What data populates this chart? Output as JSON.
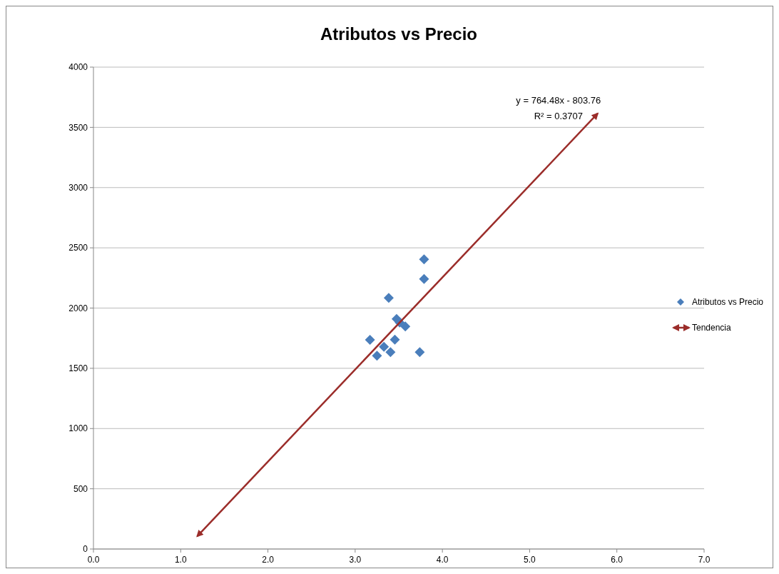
{
  "chart_data": {
    "type": "scatter",
    "title": "Atributos vs Precio",
    "xlim": [
      0,
      7
    ],
    "xticks": [
      {
        "value": 0,
        "label": "0.0"
      },
      {
        "value": 1,
        "label": "1.0"
      },
      {
        "value": 2,
        "label": "2.0"
      },
      {
        "value": 3,
        "label": "3.0"
      },
      {
        "value": 4,
        "label": "4.0"
      },
      {
        "value": 5,
        "label": "5.0"
      },
      {
        "value": 6,
        "label": "6.0"
      },
      {
        "value": 7,
        "label": "7.0"
      }
    ],
    "ylim": [
      0,
      4000
    ],
    "yticks": [
      0,
      500,
      1000,
      1500,
      2000,
      2500,
      3000,
      3500,
      4000
    ],
    "grid": "y",
    "legend": "right",
    "series": [
      {
        "name": "Atributos vs Precio",
        "color": "#4a7ebb",
        "marker": "diamond",
        "x": [
          3.79,
          3.79,
          3.385,
          3.475,
          3.51,
          3.575,
          3.17,
          3.455,
          3.33,
          3.25,
          3.405,
          3.74
        ],
        "values": [
          2404,
          2242,
          2084,
          1910,
          1880,
          1847,
          1736,
          1738,
          1679,
          1604,
          1634,
          1634
        ]
      },
      {
        "name": "Tendencia",
        "color": "#9b2d2a",
        "type": "line",
        "x": [
          1.19,
          5.78
        ],
        "values": [
          106,
          3615
        ]
      }
    ],
    "annotations": [
      {
        "text": "y = 764.48x - 803.76",
        "x": 5.78,
        "y": 3615
      },
      "R² = 0.3707"
    ]
  }
}
